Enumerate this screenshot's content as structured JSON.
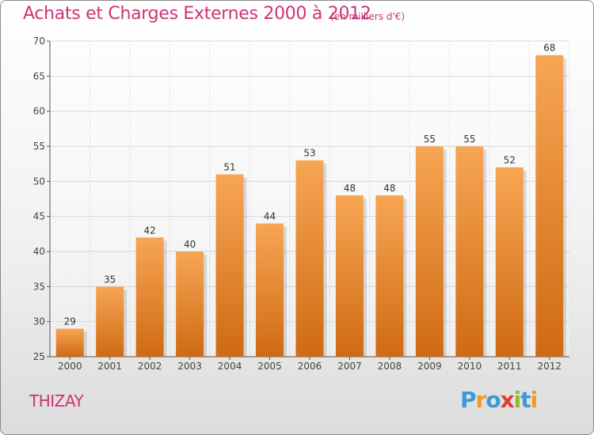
{
  "chart_data": {
    "type": "bar",
    "title": "Achats et Charges Externes 2000 à 2012",
    "subtitle": "(en milliers d'€)",
    "categories": [
      "2000",
      "2001",
      "2002",
      "2003",
      "2004",
      "2005",
      "2006",
      "2007",
      "2008",
      "2009",
      "2010",
      "2011",
      "2012"
    ],
    "values": [
      29,
      35,
      42,
      40,
      51,
      44,
      53,
      48,
      48,
      55,
      55,
      52,
      68
    ],
    "ylim": [
      25,
      70
    ],
    "yticks": [
      25,
      30,
      35,
      40,
      45,
      50,
      55,
      60,
      65,
      70
    ],
    "grid": true,
    "bar_color_top": "#f7a654",
    "bar_color_bottom": "#d06a14"
  },
  "footer": {
    "commune": "THIZAY",
    "logo_text": "Proxiti"
  },
  "colors": {
    "title": "#cc3377",
    "grid": "#d8d8d8"
  }
}
